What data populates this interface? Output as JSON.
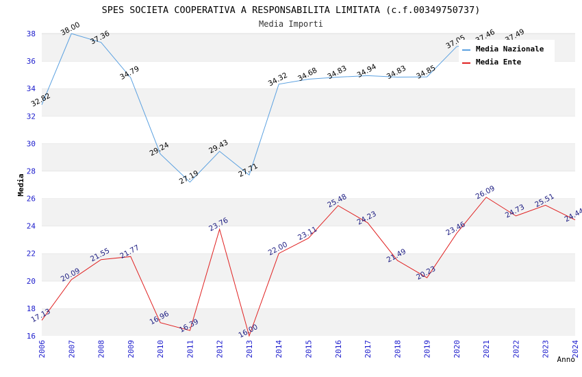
{
  "chart_data": {
    "type": "line",
    "title": "SPES SOCIETA COOPERATIVA A RESPONSABILITA LIMITATA (c.f.00349750737)",
    "subtitle": "Media Importi",
    "xlabel": "Anno",
    "ylabel": "Media",
    "ylim": [
      16,
      38
    ],
    "yticks": [
      "16",
      "18",
      "20",
      "22",
      "24",
      "26",
      "28",
      "30",
      "32",
      "34",
      "36",
      "38"
    ],
    "categories": [
      "2006",
      "2007",
      "2008",
      "2009",
      "2010",
      "2011",
      "2012",
      "2013",
      "2014",
      "2015",
      "2016",
      "2017",
      "2018",
      "2019",
      "2020",
      "2021",
      "2022",
      "2023",
      "2024"
    ],
    "series": [
      {
        "name": "Media Nazionale",
        "color": "#5aa0e0",
        "label_color": "#000000",
        "values": [
          32.82,
          38.0,
          37.36,
          34.79,
          29.24,
          27.19,
          29.43,
          27.71,
          34.32,
          34.68,
          34.83,
          34.94,
          34.83,
          34.85,
          37.05,
          37.46,
          37.49,
          null,
          null
        ],
        "labels": [
          "32.82",
          "38.00",
          "37.36",
          "34.79",
          "29.24",
          "27.19",
          "29.43",
          "27.71",
          "34.32",
          "34.68",
          "34.83",
          "34.94",
          "34.83",
          "34.85",
          "37.05",
          "37.46",
          "37.49",
          "",
          ""
        ]
      },
      {
        "name": "Media Ente",
        "color": "#e02020",
        "label_color": "#1a1a80",
        "values": [
          17.13,
          20.09,
          21.55,
          21.77,
          16.96,
          16.39,
          23.76,
          16.0,
          22.0,
          23.11,
          25.48,
          24.23,
          21.49,
          20.23,
          23.46,
          26.09,
          24.73,
          25.51,
          24.44
        ],
        "labels": [
          "17.13",
          "20.09",
          "21.55",
          "21.77",
          "16.96",
          "16.39",
          "23.76",
          "16.00",
          "22.00",
          "23.11",
          "25.48",
          "24.23",
          "21.49",
          "20.23",
          "23.46",
          "26.09",
          "24.73",
          "25.51",
          "24.44"
        ]
      }
    ],
    "legend": "top-right",
    "grid": "horizontal-bands",
    "band_color": "#f2f2f2",
    "tick_color": "#1a1acc"
  }
}
